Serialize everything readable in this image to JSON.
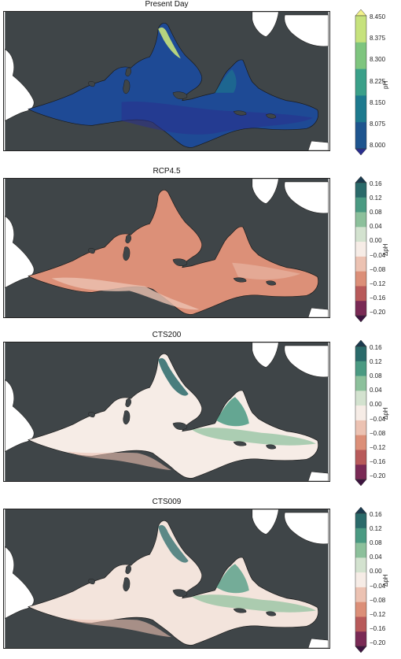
{
  "panels": [
    {
      "title": "Present Day",
      "colorbar_label": "pH",
      "ticks": [
        "8.450",
        "8.375",
        "8.300",
        "8.225",
        "8.150",
        "8.075",
        "8.000"
      ],
      "colors": [
        "#f1f28a",
        "#c6e27c",
        "#7ec57e",
        "#3aa089",
        "#1d7a8e",
        "#1e558f",
        "#2a2f8e"
      ],
      "sea_fill": "#1e4a95"
    },
    {
      "title": "RCP4.5",
      "colorbar_label": "ΔpH",
      "ticks": [
        "0.16",
        "0.12",
        "0.08",
        "0.04",
        "0.00",
        "−0.04",
        "−0.08",
        "−0.12",
        "−0.16",
        "−0.20"
      ],
      "colors": [
        "#1b3b4f",
        "#2a6a6a",
        "#4a9a82",
        "#8cc09b",
        "#d3e2cf",
        "#f6ece6",
        "#ecc2b2",
        "#dc8f78",
        "#b85a5a",
        "#7a2a55",
        "#3e1440"
      ],
      "sea_fill": "#dc9078"
    },
    {
      "title": "CTS200",
      "colorbar_label": "ΔpH",
      "ticks": [
        "0.16",
        "0.12",
        "0.08",
        "0.04",
        "0.00",
        "−0.04",
        "−0.08",
        "−0.12",
        "−0.16",
        "−0.20"
      ],
      "colors": [
        "#1b3b4f",
        "#2a6a6a",
        "#4a9a82",
        "#8cc09b",
        "#d3e2cf",
        "#f6ece6",
        "#ecc2b2",
        "#dc8f78",
        "#b85a5a",
        "#7a2a55",
        "#3e1440"
      ],
      "sea_fill": "#f6ece6"
    },
    {
      "title": "CTS009",
      "colorbar_label": "ΔpH",
      "ticks": [
        "0.16",
        "0.12",
        "0.08",
        "0.04",
        "0.00",
        "−0.04",
        "−0.08",
        "−0.12",
        "−0.16",
        "−0.20"
      ],
      "colors": [
        "#1b3b4f",
        "#2a6a6a",
        "#4a9a82",
        "#8cc09b",
        "#d3e2cf",
        "#f6ece6",
        "#ecc2b2",
        "#dc8f78",
        "#b85a5a",
        "#7a2a55",
        "#3e1440"
      ],
      "sea_fill": "#f3e4dc"
    }
  ],
  "colors": {
    "land": "#3f4548",
    "outside": "#ffffff"
  }
}
